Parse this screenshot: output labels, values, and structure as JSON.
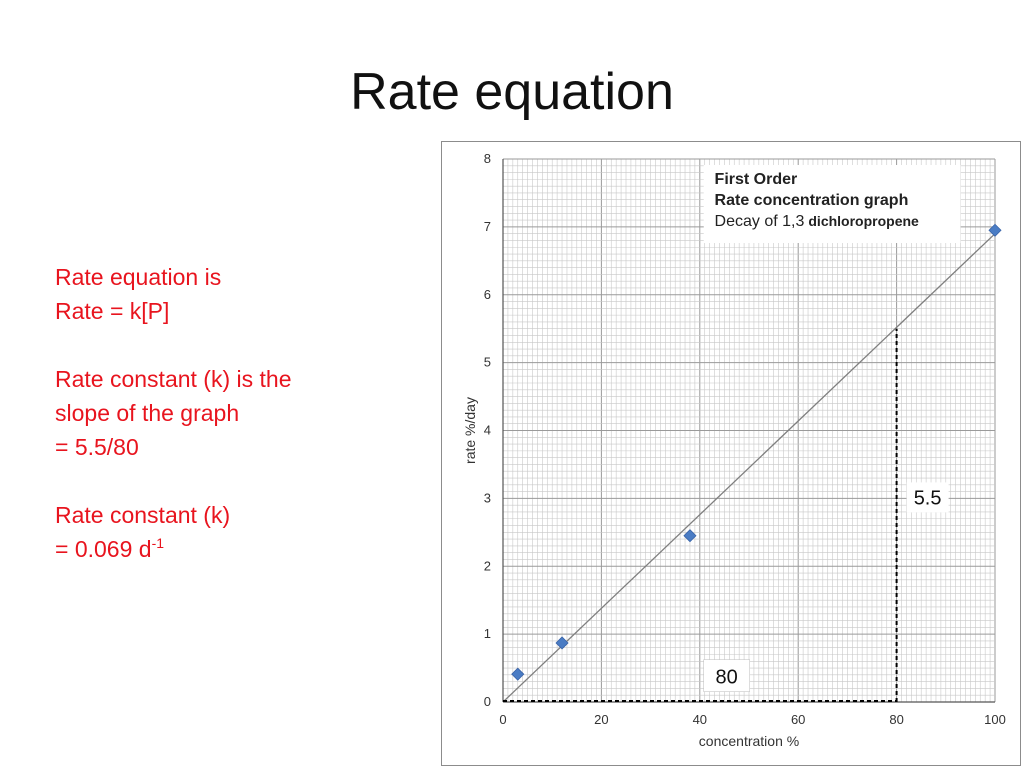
{
  "slide": {
    "title": "Rate equation",
    "notes": {
      "line1": "Rate equation is",
      "line2": "Rate = k[P]",
      "line3": "Rate constant (k) is the",
      "line4": "slope of the graph",
      "line5": "= 5.5/80",
      "line6": "Rate constant (k)",
      "line7": "= 0.069 d",
      "line7_sup": "-1"
    }
  },
  "chart_data": {
    "type": "scatter",
    "title_lines": [
      "First Order",
      "Rate concentration graph"
    ],
    "subtitle": "Decay of 1,3",
    "subtitle_bold": "dichloropropene",
    "xlabel": "concentration %",
    "ylabel": "rate %/day",
    "xlim": [
      0,
      100
    ],
    "ylim": [
      0,
      8
    ],
    "x_ticks": [
      0,
      20,
      40,
      60,
      80,
      100
    ],
    "y_ticks": [
      0,
      1,
      2,
      3,
      4,
      5,
      6,
      7,
      8
    ],
    "grid": true,
    "points": [
      {
        "x": 3,
        "y": 0.41
      },
      {
        "x": 12,
        "y": 0.87
      },
      {
        "x": 38,
        "y": 2.45
      },
      {
        "x": 100,
        "y": 6.95
      }
    ],
    "trendline": {
      "from": [
        0,
        0
      ],
      "to": [
        100,
        6.9
      ]
    },
    "slope_guides": {
      "run": 80,
      "rise": 5.5,
      "run_label": "80",
      "rise_label": "5.5"
    },
    "colors": {
      "marker": "#4a7cc4",
      "line": "#7f7f7f",
      "grid": "#c8c8c8",
      "guide": "#000000"
    }
  }
}
